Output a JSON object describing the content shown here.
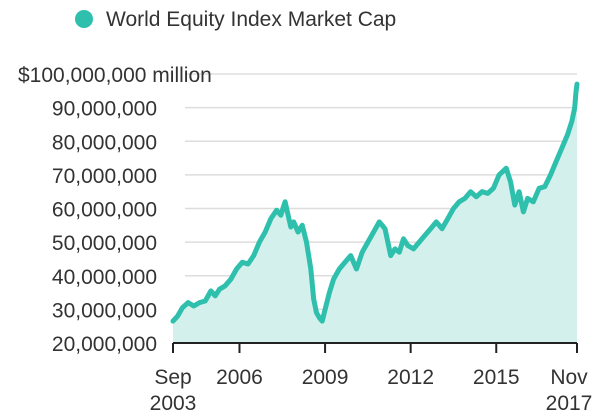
{
  "chart_data": {
    "type": "area",
    "title": "",
    "xlabel": "",
    "ylabel": "",
    "legend": {
      "position": "top-left",
      "entries": [
        "World Equity Index Market Cap"
      ]
    },
    "colors": {
      "series": "#2ebfad",
      "fill": "#d3f0ec",
      "grid": "#dddddd",
      "axis": "#222222",
      "text": "#333333"
    },
    "xlim": [
      2003.67,
      2017.83
    ],
    "ylim": [
      20000000,
      100000000
    ],
    "y_ticks": [
      {
        "value": 20000000,
        "label": "20,000,000"
      },
      {
        "value": 30000000,
        "label": "30,000,000"
      },
      {
        "value": 40000000,
        "label": "40,000,000"
      },
      {
        "value": 50000000,
        "label": "50,000,000"
      },
      {
        "value": 60000000,
        "label": "60,000,000"
      },
      {
        "value": 70000000,
        "label": "70,000,000"
      },
      {
        "value": 80000000,
        "label": "80,000,000"
      },
      {
        "value": 90000000,
        "label": "90,000,000"
      },
      {
        "value": 100000000,
        "label": "$100,000,000 million"
      }
    ],
    "x_ticks": [
      {
        "value": 2003.67,
        "label": "Sep",
        "label2": "2003"
      },
      {
        "value": 2006.0,
        "label": "2006",
        "label2": ""
      },
      {
        "value": 2009.0,
        "label": "2009",
        "label2": ""
      },
      {
        "value": 2012.0,
        "label": "2012",
        "label2": ""
      },
      {
        "value": 2015.0,
        "label": "2015",
        "label2": ""
      },
      {
        "value": 2017.83,
        "label": "Nov",
        "label2": "2017"
      }
    ],
    "series": [
      {
        "name": "World Equity Index Market Cap",
        "x": [
          2003.67,
          2003.83,
          2004.0,
          2004.2,
          2004.4,
          2004.6,
          2004.8,
          2005.0,
          2005.15,
          2005.3,
          2005.5,
          2005.7,
          2005.9,
          2006.1,
          2006.3,
          2006.5,
          2006.7,
          2006.9,
          2007.1,
          2007.3,
          2007.45,
          2007.6,
          2007.8,
          2007.9,
          2008.05,
          2008.2,
          2008.35,
          2008.5,
          2008.6,
          2008.7,
          2008.8,
          2008.9,
          2009.0,
          2009.15,
          2009.3,
          2009.5,
          2009.7,
          2009.9,
          2010.1,
          2010.3,
          2010.5,
          2010.7,
          2010.9,
          2011.1,
          2011.3,
          2011.45,
          2011.6,
          2011.75,
          2011.9,
          2012.1,
          2012.3,
          2012.5,
          2012.7,
          2012.9,
          2013.1,
          2013.3,
          2013.5,
          2013.7,
          2013.9,
          2014.1,
          2014.3,
          2014.5,
          2014.7,
          2014.9,
          2015.1,
          2015.35,
          2015.5,
          2015.65,
          2015.8,
          2015.95,
          2016.1,
          2016.3,
          2016.5,
          2016.7,
          2016.9,
          2017.1,
          2017.3,
          2017.5,
          2017.65,
          2017.75,
          2017.8,
          2017.83
        ],
        "values": [
          26500000,
          28000000,
          30500000,
          32000000,
          31000000,
          32000000,
          32500000,
          35500000,
          34000000,
          36000000,
          37000000,
          39000000,
          42000000,
          44000000,
          43500000,
          46000000,
          50000000,
          53000000,
          57000000,
          59500000,
          58000000,
          62000000,
          54500000,
          56000000,
          53000000,
          55000000,
          50000000,
          42000000,
          33000000,
          29000000,
          27500000,
          26500000,
          30000000,
          35000000,
          39000000,
          42000000,
          44000000,
          46000000,
          42000000,
          47000000,
          50000000,
          53000000,
          56000000,
          54000000,
          46000000,
          48000000,
          47000000,
          51000000,
          49000000,
          48000000,
          50000000,
          52000000,
          54000000,
          56000000,
          54000000,
          57000000,
          60000000,
          62000000,
          63000000,
          65000000,
          63500000,
          65000000,
          64500000,
          66000000,
          70000000,
          72000000,
          68000000,
          61000000,
          65000000,
          59000000,
          63000000,
          62000000,
          66000000,
          66500000,
          70000000,
          74000000,
          78000000,
          82000000,
          86000000,
          90000000,
          95000000,
          97000000
        ]
      }
    ]
  }
}
